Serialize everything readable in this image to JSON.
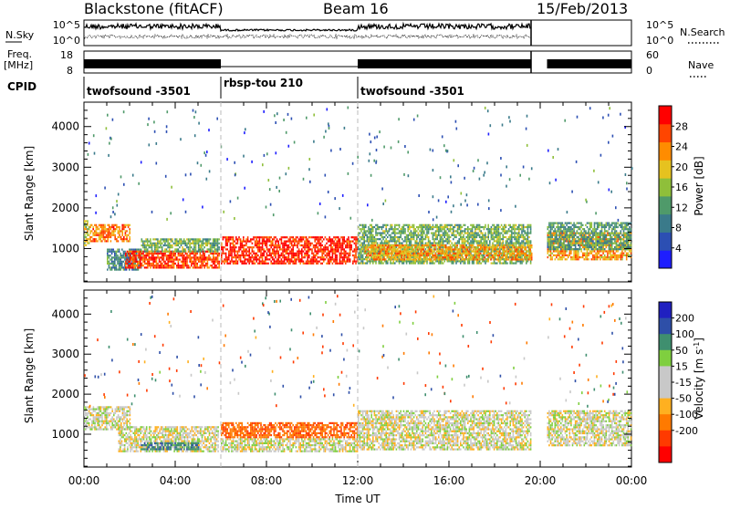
{
  "header": {
    "station": "Blackstone (fitACF)",
    "beam": "Beam 16",
    "date": "15/Feb/2013"
  },
  "top_panels": {
    "nsky_label": "N.Sky",
    "nsky_ticks": [
      "10^5",
      "10^0"
    ],
    "nsearch_label": "N.Search",
    "freq_label_line1": "Freq.",
    "freq_label_line2": "[MHz]",
    "freq_ticks": [
      "18",
      "8"
    ],
    "nave_ticks": [
      "60",
      "0"
    ],
    "nave_label": "Nave",
    "cpid_label": "CPID",
    "cpid_segments": [
      {
        "start_h": 0,
        "end_h": 6,
        "label": "twofsound -3501"
      },
      {
        "start_h": 6,
        "end_h": 12,
        "label": "rbsp-tou 210"
      },
      {
        "start_h": 12,
        "end_h": 24,
        "label": "twofsound -3501"
      }
    ]
  },
  "colors": {
    "power_scale": [
      "#1e1eff",
      "#2c4fb3",
      "#3a7a8a",
      "#4f9a6a",
      "#8fbf3a",
      "#e6c21f",
      "#ff8c00",
      "#ff4500",
      "#ff0000"
    ],
    "velocity_scale": [
      "#2020c0",
      "#2e4fa8",
      "#3f8f6f",
      "#7fcf3f",
      "#c8c8c8",
      "#c8c8c8",
      "#ffb020",
      "#ff7a00",
      "#ff3a00",
      "#ff0000"
    ]
  },
  "chart_data": [
    {
      "type": "heatmap",
      "panel": "power",
      "ylabel": "Slant Range [km]",
      "xlabel": "",
      "x_ticks": [
        "00:00",
        "04:00",
        "08:00",
        "12:00",
        "16:00",
        "20:00",
        "00:00"
      ],
      "y_ticks": [
        "1000",
        "2000",
        "3000",
        "4000"
      ],
      "xlim_hours": [
        0,
        24
      ],
      "ylim_km": [
        180,
        4600
      ],
      "colorbar_label": "Power [dB]",
      "colorbar_ticks": [
        "4",
        "8",
        "12",
        "16",
        "20",
        "24",
        "28"
      ],
      "colorbar_range": [
        0,
        32
      ],
      "bands": [
        {
          "t0": 0.0,
          "t1": 0.25,
          "r0": 1100,
          "r1": 1700,
          "level": 18
        },
        {
          "t0": 0.25,
          "t1": 2.0,
          "r0": 1200,
          "r1": 1600,
          "level": 24
        },
        {
          "t0": 1.0,
          "t1": 2.5,
          "r0": 500,
          "r1": 1000,
          "level": 10
        },
        {
          "t0": 1.8,
          "t1": 5.9,
          "r0": 550,
          "r1": 950,
          "level": 28
        },
        {
          "t0": 2.5,
          "t1": 5.9,
          "r0": 950,
          "r1": 1250,
          "level": 14
        },
        {
          "t0": 6.0,
          "t1": 12.0,
          "r0": 650,
          "r1": 1300,
          "level": 29
        },
        {
          "t0": 12.0,
          "t1": 19.6,
          "r0": 650,
          "r1": 1600,
          "level": 14
        },
        {
          "t0": 12.3,
          "t1": 19.6,
          "r0": 750,
          "r1": 1100,
          "level": 22
        },
        {
          "t0": 20.3,
          "t1": 24.0,
          "r0": 750,
          "r1": 1400,
          "level": 22
        },
        {
          "t0": 20.3,
          "t1": 24.0,
          "r0": 1000,
          "r1": 1650,
          "level": 12
        }
      ]
    },
    {
      "type": "heatmap",
      "panel": "velocity",
      "ylabel": "Slant Range [km]",
      "xlabel": "Time UT",
      "x_ticks": [
        "00:00",
        "04:00",
        "08:00",
        "12:00",
        "16:00",
        "20:00",
        "00:00"
      ],
      "y_ticks": [
        "1000",
        "2000",
        "3000",
        "4000"
      ],
      "xlim_hours": [
        0,
        24
      ],
      "ylim_km": [
        180,
        4600
      ],
      "colorbar_label": "Velocity [m s^-1]",
      "colorbar_ticks": [
        "200",
        "100",
        "50",
        "15",
        "-15",
        "-50",
        "-100",
        "-200"
      ],
      "bands": [
        {
          "t0": 0.0,
          "t1": 2.0,
          "r0": 1100,
          "r1": 1700,
          "level": 0
        },
        {
          "t0": 1.5,
          "t1": 5.9,
          "r0": 550,
          "r1": 1200,
          "level": 0
        },
        {
          "t0": 2.5,
          "t1": 5.0,
          "r0": 600,
          "r1": 800,
          "level": 60
        },
        {
          "t0": 6.0,
          "t1": 12.0,
          "r0": 900,
          "r1": 1300,
          "level": -70
        },
        {
          "t0": 6.0,
          "t1": 12.0,
          "r0": 550,
          "r1": 900,
          "level": 0
        },
        {
          "t0": 12.0,
          "t1": 19.6,
          "r0": 600,
          "r1": 1600,
          "level": 0
        },
        {
          "t0": 20.3,
          "t1": 24.0,
          "r0": 700,
          "r1": 1600,
          "level": 0
        }
      ]
    }
  ]
}
